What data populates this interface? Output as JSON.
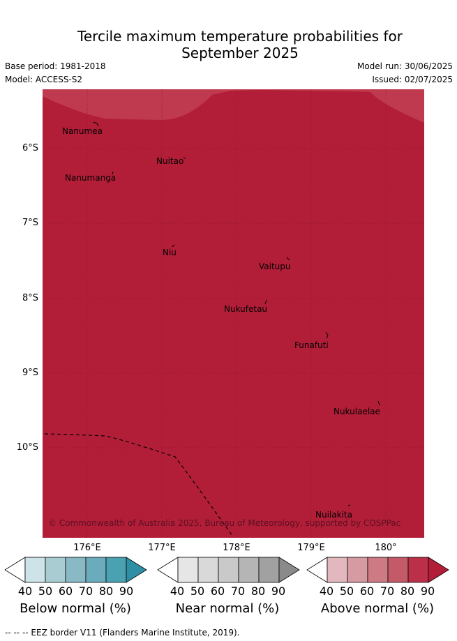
{
  "title_line1": "Tercile maximum temperature probabilities for",
  "title_line2": "September 2025",
  "base_period": "Base period: 1981-2018",
  "model": "Model: ACCESS-S2",
  "model_run": "Model run: 30/06/2025",
  "issued": "Issued: 02/07/2025",
  "map": {
    "main_color": "#b21e38",
    "light_color": "#bf3a4e",
    "places": [
      "Nanumea",
      "Nuitao",
      "Nanumanga",
      "Niu",
      "Vaitupu",
      "Nukufetau",
      "Funafuti",
      "Nukulaelae",
      "Nuilakita"
    ],
    "copyright": "© Commonwealth of Australia 2025, Bureau of Meteorology, supported by COSPPac",
    "lat_labels": [
      "6°S",
      "7°S",
      "8°S",
      "9°S",
      "10°S"
    ],
    "lon_labels": [
      "176°E",
      "177°E",
      "178°E",
      "179°E",
      "180°"
    ]
  },
  "legends": [
    {
      "title": "Below normal (%)",
      "ticks": [
        "40",
        "50",
        "60",
        "70",
        "80",
        "90"
      ],
      "colors": [
        "#ffffff",
        "#cde3e8",
        "#a9cbd2",
        "#89b9c5",
        "#6aacbb",
        "#4aa1b1",
        "#2e8ea3"
      ]
    },
    {
      "title": "Near normal (%)",
      "ticks": [
        "40",
        "50",
        "60",
        "70",
        "80",
        "90"
      ],
      "colors": [
        "#ffffff",
        "#e6e6e6",
        "#d9d9d9",
        "#c9c9c9",
        "#b5b5b5",
        "#a1a1a1",
        "#8a8a8a"
      ]
    },
    {
      "title": "Above normal (%)",
      "ticks": [
        "40",
        "50",
        "60",
        "70",
        "80",
        "90"
      ],
      "colors": [
        "#ffffff",
        "#e2b8be",
        "#d69aa2",
        "#cd7a84",
        "#c45a68",
        "#bb3048",
        "#b21e38"
      ]
    }
  ],
  "footer": "--  --  -- EEZ border V11 (Flanders Marine Institute, 2019)."
}
